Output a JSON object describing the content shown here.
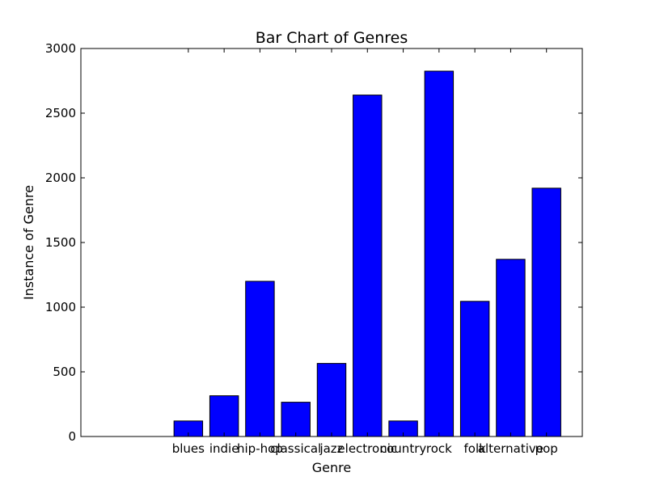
{
  "chart_data": {
    "type": "bar",
    "title": "Bar Chart of Genres",
    "xlabel": "Genre",
    "ylabel": "Instance of Genre",
    "categories": [
      "blues",
      "indie",
      "hip-hop",
      "classical",
      "jazz",
      "electronic",
      "country",
      "rock",
      "folk",
      "alternative",
      "pop"
    ],
    "values": [
      120,
      315,
      1200,
      265,
      565,
      2640,
      120,
      2825,
      1045,
      1370,
      1920
    ],
    "ylim": [
      0,
      3000
    ],
    "yticks": [
      0,
      500,
      1000,
      1500,
      2000,
      2500,
      3000
    ],
    "bar_color": "#0000ff",
    "grid": false,
    "legend": "none"
  }
}
